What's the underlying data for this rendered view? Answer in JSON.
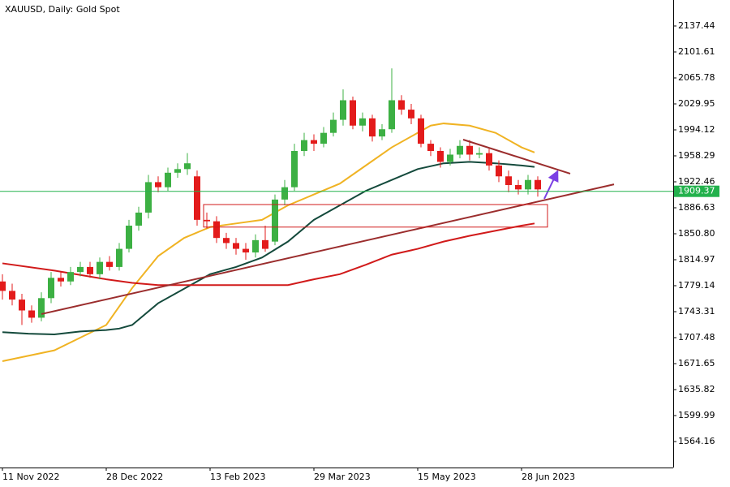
{
  "chart_data": {
    "type": "candlestick",
    "title": "XAUUSD, Daily:  Gold Spot",
    "xlim": [
      -0.75,
      206.75
    ],
    "xticks": [
      {
        "value": 0,
        "label": "11 Nov 2022"
      },
      {
        "value": 32,
        "label": "28 Dec 2022"
      },
      {
        "value": 64,
        "label": "13 Feb 2023"
      },
      {
        "value": 96,
        "label": "29 Mar 2023"
      },
      {
        "value": 128,
        "label": "15 May 2023"
      },
      {
        "value": 160,
        "label": "28 Jun 2023"
      }
    ],
    "ylim": [
      1528.33,
      2173.27
    ],
    "yticks": [
      2137.44,
      2101.61,
      2065.78,
      2029.95,
      1994.12,
      1958.29,
      1922.46,
      1886.63,
      {
        "value": 1850.8,
        "label": "1850.80"
      },
      1814.97,
      1779.14,
      1743.31,
      1707.48,
      1671.65,
      1635.82,
      1599.99,
      1564.16
    ],
    "up_color": "#3cb043",
    "down_color": "#e31b1b",
    "candles": {
      "x": [
        0,
        3,
        6,
        9,
        12,
        15,
        18,
        21,
        24,
        27,
        30,
        33,
        36,
        39,
        42,
        45,
        48,
        51,
        54,
        57,
        60,
        63,
        66,
        69,
        72,
        75,
        78,
        81,
        84,
        87,
        90,
        93,
        96,
        99,
        102,
        105,
        108,
        111,
        114,
        117,
        120,
        123,
        126,
        129,
        132,
        135,
        138,
        141,
        144,
        147,
        150,
        153,
        156,
        159,
        162,
        165
      ],
      "open": [
        1785,
        1772,
        1760,
        1745,
        1735,
        1762,
        1790,
        1785,
        1798,
        1805,
        1795,
        1812,
        1805,
        1830,
        1862,
        1880,
        1922,
        1915,
        1935,
        1940,
        1930,
        1870,
        1868,
        1845,
        1838,
        1830,
        1825,
        1842,
        1840,
        1898,
        1915,
        1965,
        1980,
        1975,
        1990,
        2008,
        2035,
        2000,
        2010,
        1985,
        1995,
        2035,
        2022,
        2010,
        1975,
        1965,
        1950,
        1960,
        1972,
        1960,
        1962,
        1945,
        1930,
        1918,
        1912,
        1925
      ],
      "high": [
        1795,
        1782,
        1768,
        1752,
        1770,
        1798,
        1798,
        1805,
        1812,
        1812,
        1818,
        1820,
        1838,
        1870,
        1888,
        1932,
        1930,
        1942,
        1948,
        1962,
        1938,
        1880,
        1875,
        1852,
        1845,
        1838,
        1850,
        1862,
        1905,
        1925,
        1975,
        1990,
        1988,
        1998,
        2018,
        2050,
        2040,
        2018,
        2015,
        2002,
        2079,
        2042,
        2030,
        2015,
        1980,
        1970,
        1968,
        1980,
        1980,
        1970,
        1968,
        1952,
        1938,
        1925,
        1932,
        1930
      ],
      "low": [
        1760,
        1752,
        1725,
        1728,
        1730,
        1755,
        1778,
        1780,
        1792,
        1790,
        1788,
        1800,
        1800,
        1825,
        1855,
        1872,
        1908,
        1910,
        1928,
        1932,
        1862,
        1858,
        1838,
        1830,
        1822,
        1815,
        1818,
        1826,
        1835,
        1890,
        1910,
        1958,
        1965,
        1970,
        1985,
        2000,
        1995,
        1992,
        1978,
        1980,
        1990,
        2015,
        2002,
        1970,
        1958,
        1942,
        1945,
        1955,
        1952,
        1955,
        1938,
        1922,
        1908,
        1905,
        1905,
        1902
      ],
      "close": [
        1772,
        1760,
        1745,
        1735,
        1762,
        1790,
        1785,
        1798,
        1805,
        1795,
        1812,
        1805,
        1830,
        1862,
        1880,
        1922,
        1915,
        1935,
        1940,
        1948,
        1870,
        1868,
        1845,
        1838,
        1830,
        1825,
        1842,
        1830,
        1898,
        1915,
        1965,
        1980,
        1975,
        1990,
        2008,
        2035,
        2000,
        2010,
        1985,
        1995,
        2035,
        2022,
        2010,
        1975,
        1965,
        1950,
        1960,
        1972,
        1960,
        1962,
        1945,
        1930,
        1918,
        1912,
        1925,
        1912
      ]
    },
    "series": [
      {
        "color": "#f0b323",
        "x": [
          0,
          16,
          32,
          40,
          48,
          56,
          64,
          72,
          80,
          84,
          88,
          96,
          104,
          112,
          120,
          128,
          132,
          136,
          144,
          152,
          160,
          164
        ],
        "values": [
          1675,
          1690,
          1725,
          1776,
          1820,
          1845,
          1860,
          1865,
          1870,
          1880,
          1890,
          1905,
          1920,
          1945,
          1970,
          1990,
          2000,
          2003,
          2000,
          1990,
          1970,
          1963
        ]
      },
      {
        "color": "#144a3c",
        "x": [
          0,
          8,
          16,
          24,
          32,
          36,
          40,
          48,
          56,
          64,
          72,
          80,
          88,
          96,
          104,
          112,
          120,
          128,
          136,
          144,
          152,
          160,
          164
        ],
        "values": [
          1715,
          1713,
          1712,
          1716,
          1718,
          1720,
          1725,
          1755,
          1775,
          1795,
          1805,
          1818,
          1840,
          1870,
          1890,
          1910,
          1925,
          1940,
          1948,
          1950,
          1948,
          1945,
          1943
        ]
      },
      {
        "color": "#d11a1a",
        "x": [
          0,
          16,
          32,
          40,
          48,
          64,
          80,
          88,
          96,
          104,
          112,
          120,
          128,
          136,
          144,
          152,
          160,
          164
        ],
        "values": [
          1810,
          1800,
          1788,
          1783,
          1780,
          1780,
          1780,
          1780,
          1788,
          1795,
          1808,
          1822,
          1830,
          1840,
          1848,
          1855,
          1862,
          1865
        ]
      }
    ],
    "annotations": {
      "trendline": {
        "color": "#9b2d2d",
        "x": [
          12,
          188.5
        ],
        "y": [
          1740,
          1919
        ]
      },
      "resistance": {
        "color": "#9b2d2d",
        "x": [
          142,
          175
        ],
        "y": [
          1980.7,
          1933.7
        ]
      },
      "zone": {
        "color": "#d11a1a",
        "x": [
          62,
          168
        ],
        "y": [
          1860,
          1891.1
        ]
      },
      "arrow": {
        "color": "#7b3fe4",
        "x": [
          167,
          171
        ],
        "y": [
          1899,
          1936
        ]
      },
      "price_line": {
        "color": "#22b14c",
        "value": 1909.37
      }
    }
  }
}
